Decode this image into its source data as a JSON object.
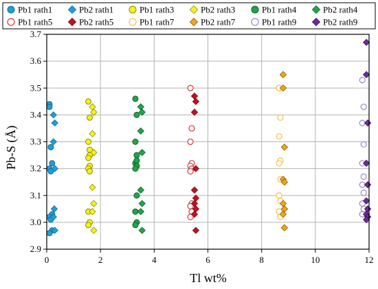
{
  "chart_data": {
    "type": "scatter",
    "xlabel": "Tl wt%",
    "ylabel": "Pb-S (Å)",
    "xlim": [
      0,
      12
    ],
    "ylim": [
      2.9,
      3.7
    ],
    "xticks": [
      0,
      2,
      4,
      6,
      8,
      10,
      12
    ],
    "yticks": [
      2.9,
      3.0,
      3.1,
      3.2,
      3.3,
      3.4,
      3.5,
      3.6,
      3.7
    ],
    "xtick_labels": [
      "0",
      "2",
      "4",
      "6",
      "8",
      "10",
      "12"
    ],
    "ytick_labels": [
      "2.9",
      "3.0",
      "3.1",
      "3.2",
      "3.3",
      "3.4",
      "3.5",
      "3.6",
      "3.7"
    ],
    "grid": true,
    "legend_position": "top",
    "series": [
      {
        "name": "Pb1 rath1",
        "marker": "circle",
        "filled": true,
        "color": "#1f9fd9",
        "stroke": "#156a94",
        "x": [
          0.1,
          0.1,
          0.15,
          0.2,
          0.1,
          0.15,
          0.2,
          0.1,
          0.15,
          0.2,
          0.1,
          0.15
        ],
        "y": [
          3.44,
          3.43,
          3.28,
          3.22,
          3.2,
          3.19,
          3.03,
          3.02,
          3.01,
          2.97,
          2.96,
          3.28
        ]
      },
      {
        "name": "Pb2 rath1",
        "marker": "diamond",
        "filled": true,
        "color": "#1f9fd9",
        "stroke": "#156a94",
        "x": [
          0.25,
          0.3,
          0.25,
          0.3,
          0.28,
          0.25,
          0.3
        ],
        "y": [
          3.4,
          3.37,
          3.3,
          3.2,
          3.05,
          3.02,
          2.97
        ]
      },
      {
        "name": "Pb1 rath3",
        "marker": "circle",
        "filled": true,
        "color": "#f7f21a",
        "stroke": "#8c8a00",
        "x": [
          1.55,
          1.6,
          1.55,
          1.6,
          1.55,
          1.6,
          1.55,
          1.6,
          1.55,
          1.6,
          1.55,
          1.6
        ],
        "y": [
          3.45,
          3.39,
          3.3,
          3.25,
          3.24,
          3.21,
          3.2,
          3.19,
          3.04,
          3.0,
          2.99,
          3.27
        ]
      },
      {
        "name": "Pb2 rath3",
        "marker": "diamond",
        "filled": true,
        "color": "#f7f21a",
        "stroke": "#8c8a00",
        "x": [
          1.7,
          1.75,
          1.7,
          1.75,
          1.7,
          1.75,
          1.7,
          1.75
        ],
        "y": [
          3.43,
          3.41,
          3.33,
          3.26,
          3.13,
          3.07,
          3.04,
          2.97
        ]
      },
      {
        "name": "Pb1 rath4",
        "marker": "circle",
        "filled": true,
        "color": "#1ea84a",
        "stroke": "#0d5c24",
        "x": [
          3.3,
          3.35,
          3.3,
          3.35,
          3.3,
          3.35,
          3.3,
          3.35,
          3.3,
          3.35,
          3.3,
          3.35
        ],
        "y": [
          3.46,
          3.4,
          3.3,
          3.25,
          3.22,
          3.21,
          3.2,
          3.1,
          3.04,
          3.0,
          2.99,
          3.23
        ]
      },
      {
        "name": "Pb2 rath4",
        "marker": "diamond",
        "filled": true,
        "color": "#1ea84a",
        "stroke": "#0d5c24",
        "x": [
          3.5,
          3.55,
          3.5,
          3.55,
          3.5,
          3.55,
          3.5,
          3.55
        ],
        "y": [
          3.43,
          3.41,
          3.34,
          3.26,
          3.12,
          3.07,
          3.04,
          2.97
        ]
      },
      {
        "name": "Pb1 rath5",
        "marker": "circle",
        "filled": false,
        "color": "#d73a3a",
        "stroke": "#d73a3a",
        "x": [
          5.35,
          5.4,
          5.35,
          5.4,
          5.35,
          5.4,
          5.35,
          5.4,
          5.35,
          5.4,
          5.35
        ],
        "y": [
          3.5,
          3.35,
          3.3,
          3.22,
          3.21,
          3.2,
          3.19,
          3.07,
          3.06,
          3.04,
          3.02
        ]
      },
      {
        "name": "Pb2 rath5",
        "marker": "diamond",
        "filled": true,
        "color": "#c1121f",
        "stroke": "#7a0a12",
        "x": [
          5.5,
          5.55,
          5.5,
          5.55,
          5.5,
          5.55,
          5.5,
          5.55,
          5.5,
          5.55
        ],
        "y": [
          3.47,
          3.45,
          3.41,
          3.2,
          3.12,
          3.09,
          3.07,
          3.05,
          3.03,
          2.97
        ]
      },
      {
        "name": "Pb1 rath7",
        "marker": "circle",
        "filled": false,
        "color": "#f5c242",
        "stroke": "#f5c242",
        "x": [
          8.65,
          8.7,
          8.65,
          8.7,
          8.65,
          8.7,
          8.65,
          8.7,
          8.65,
          8.7,
          8.65
        ],
        "y": [
          3.5,
          3.39,
          3.32,
          3.23,
          3.22,
          3.16,
          3.1,
          3.08,
          3.04,
          3.02,
          3.5
        ]
      },
      {
        "name": "Pb2 rath7",
        "marker": "diamond",
        "filled": true,
        "color": "#f2a51a",
        "stroke": "#8a5a00",
        "x": [
          8.8,
          8.8,
          8.85,
          8.8,
          8.85,
          8.8,
          8.85,
          8.8,
          8.85
        ],
        "y": [
          3.55,
          3.5,
          3.28,
          3.16,
          3.15,
          3.07,
          3.05,
          3.03,
          2.98
        ]
      },
      {
        "name": "Pb1 rath9",
        "marker": "circle",
        "filled": false,
        "color": "#9b86c9",
        "stroke": "#9b86c9",
        "x": [
          11.75,
          11.8,
          11.75,
          11.8,
          11.75,
          11.8,
          11.75,
          11.8,
          11.75,
          11.8,
          11.75
        ],
        "y": [
          3.53,
          3.43,
          3.37,
          3.29,
          3.22,
          3.17,
          3.14,
          3.11,
          3.07,
          3.05,
          3.03
        ]
      },
      {
        "name": "Pb2 rath9",
        "marker": "diamond",
        "filled": true,
        "color": "#6e2aa0",
        "stroke": "#3a1258",
        "x": [
          11.9,
          11.9,
          11.95,
          11.9,
          11.95,
          11.9,
          11.95,
          11.9,
          11.95,
          11.9
        ],
        "y": [
          3.67,
          3.55,
          3.37,
          3.22,
          3.14,
          3.08,
          3.05,
          3.03,
          3.02,
          3.01
        ]
      }
    ]
  }
}
